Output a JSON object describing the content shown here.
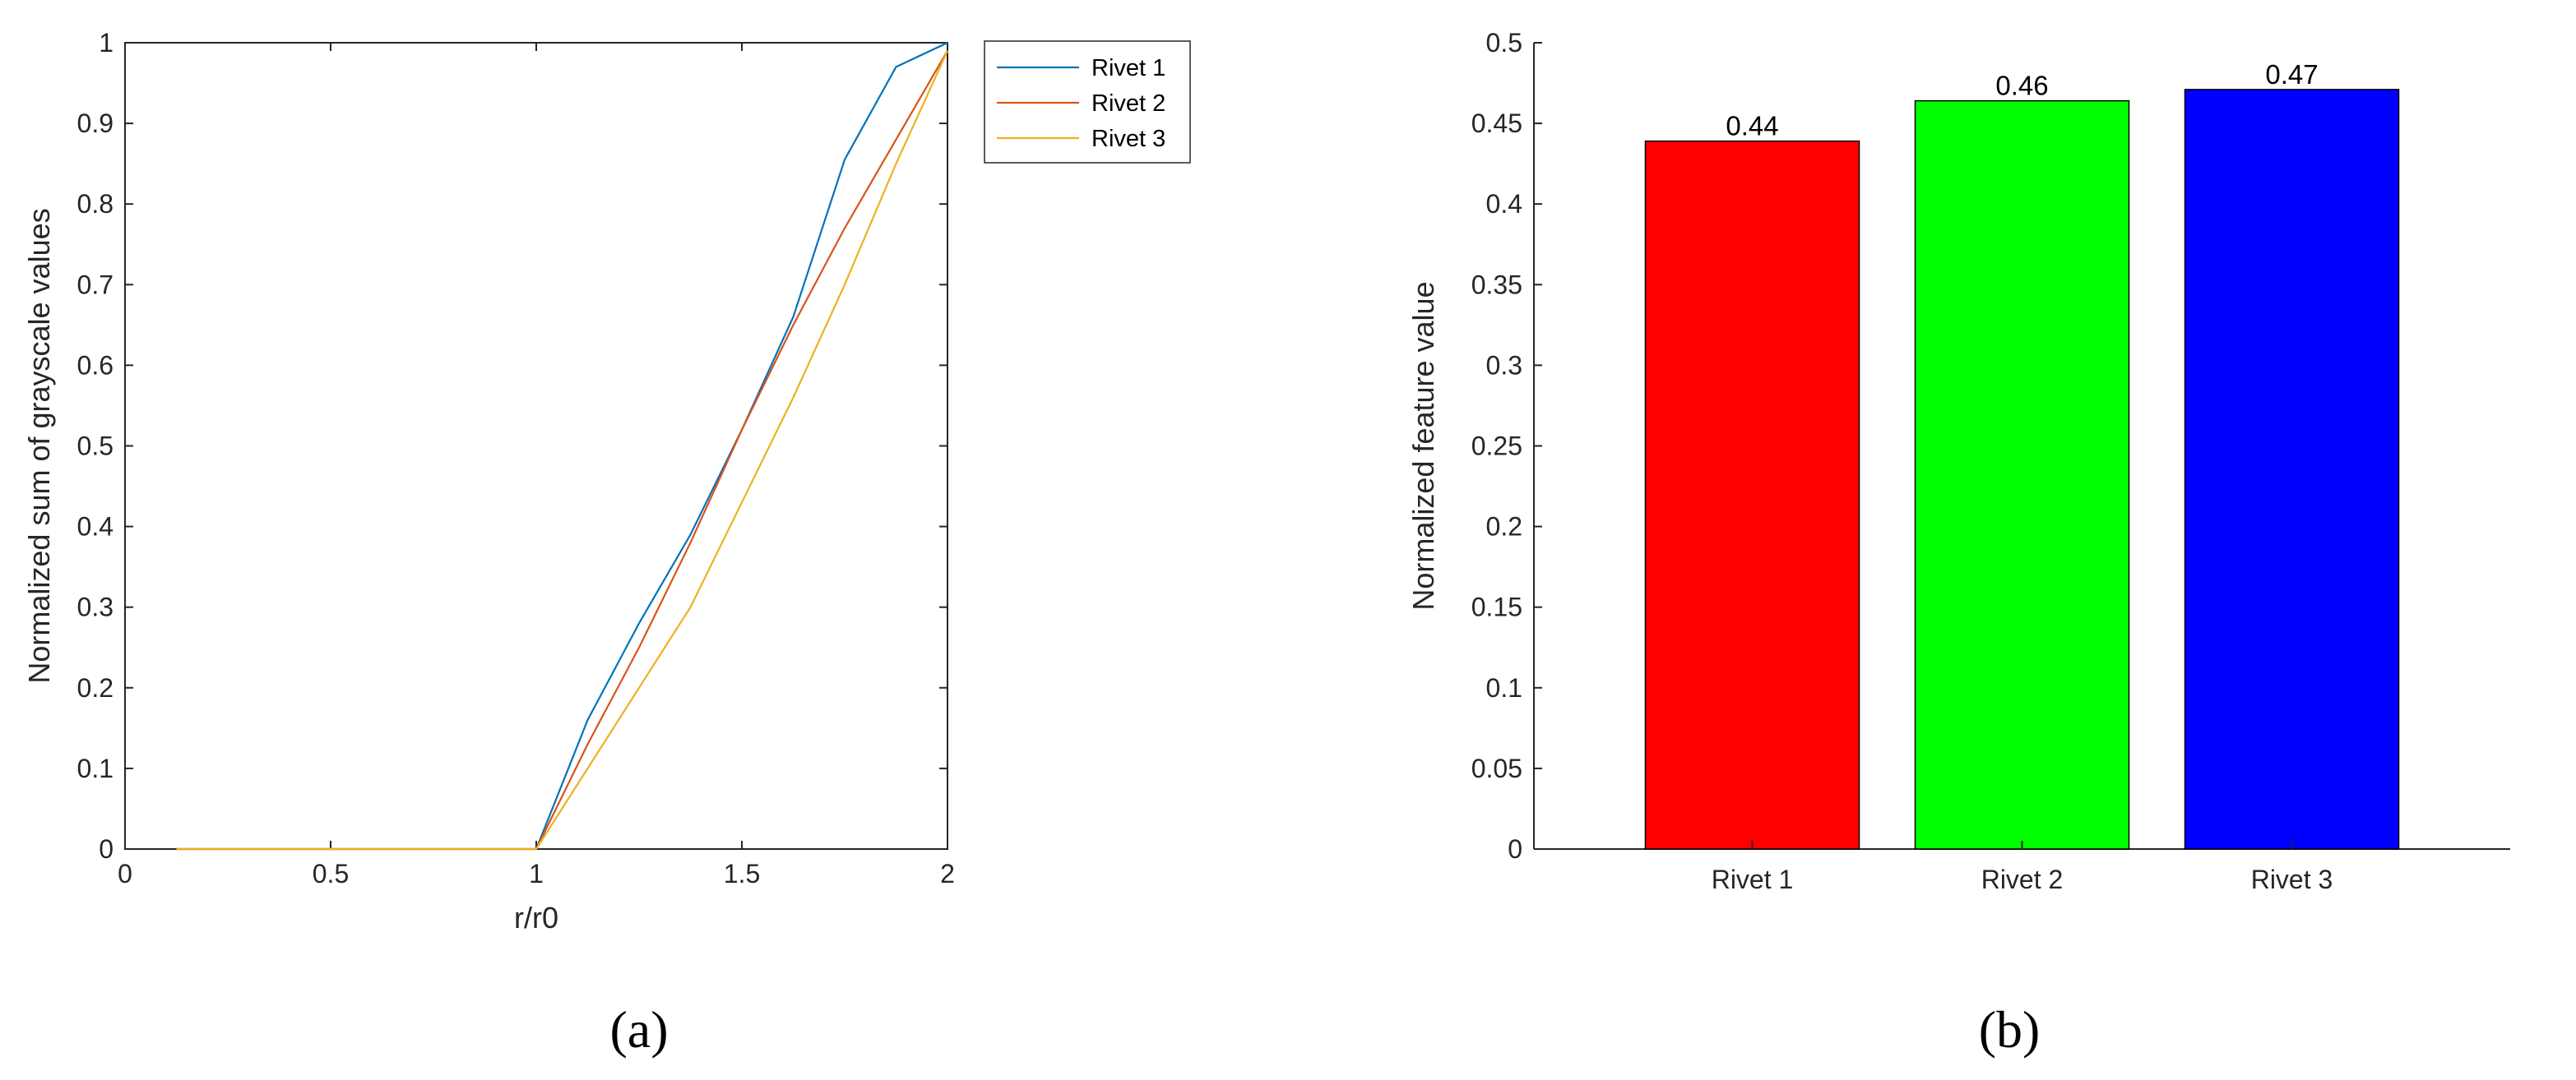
{
  "panels": {
    "a": {
      "label": "(a)"
    },
    "b": {
      "label": "(b)"
    }
  },
  "chart_data": [
    {
      "type": "line",
      "xlabel": "r/r0",
      "ylabel": "Normalized sum of grayscale values",
      "xlim": [
        0,
        2
      ],
      "ylim": [
        0,
        1
      ],
      "xticks": [
        0,
        0.5,
        1,
        1.5,
        2
      ],
      "xtick_labels": [
        "0",
        "0.5",
        "1",
        "1.5",
        "2"
      ],
      "yticks": [
        0,
        0.1,
        0.2,
        0.3,
        0.4,
        0.5,
        0.6,
        0.7,
        0.8,
        0.9,
        1
      ],
      "ytick_labels": [
        "0",
        "0.1",
        "0.2",
        "0.3",
        "0.4",
        "0.5",
        "0.6",
        "0.7",
        "0.8",
        "0.9",
        "1"
      ],
      "legend_position": "outside-top-right",
      "grid": false,
      "series": [
        {
          "name": "Rivet 1",
          "color": "#0072BD",
          "x": [
            0.125,
            0.25,
            0.375,
            0.5,
            0.625,
            0.75,
            0.875,
            1.0,
            1.125,
            1.25,
            1.375,
            1.5,
            1.625,
            1.75,
            1.875,
            2.0
          ],
          "y": [
            0,
            0,
            0,
            0,
            0,
            0,
            0,
            0,
            0.16,
            0.28,
            0.39,
            0.52,
            0.66,
            0.855,
            0.97,
            1.0
          ]
        },
        {
          "name": "Rivet 2",
          "color": "#D95319",
          "x": [
            0.125,
            0.25,
            0.375,
            0.5,
            0.625,
            0.75,
            0.875,
            1.0,
            1.125,
            1.25,
            1.375,
            1.5,
            1.625,
            1.75,
            1.875,
            2.0
          ],
          "y": [
            0,
            0,
            0,
            0,
            0,
            0,
            0,
            0,
            0.13,
            0.25,
            0.38,
            0.52,
            0.65,
            0.77,
            0.88,
            0.99
          ]
        },
        {
          "name": "Rivet 3",
          "color": "#EDB120",
          "x": [
            0.125,
            0.25,
            0.375,
            0.5,
            0.625,
            0.75,
            0.875,
            1.0,
            1.125,
            1.25,
            1.375,
            1.5,
            1.625,
            1.75,
            1.875,
            2.0
          ],
          "y": [
            0,
            0,
            0,
            0,
            0,
            0,
            0,
            0,
            0.1,
            0.2,
            0.3,
            0.43,
            0.56,
            0.7,
            0.85,
            0.99
          ]
        }
      ]
    },
    {
      "type": "bar",
      "xlabel": "",
      "ylabel": "Normalized feature value",
      "ylim": [
        0,
        0.5
      ],
      "yticks": [
        0,
        0.05,
        0.1,
        0.15,
        0.2,
        0.25,
        0.3,
        0.35,
        0.4,
        0.45,
        0.5
      ],
      "ytick_labels": [
        "0",
        "0.05",
        "0.1",
        "0.15",
        "0.2",
        "0.25",
        "0.3",
        "0.35",
        "0.4",
        "0.45",
        "0.5"
      ],
      "categories": [
        "Rivet 1",
        "Rivet 2",
        "Rivet 3"
      ],
      "values": [
        0.439,
        0.464,
        0.471
      ],
      "data_labels": [
        "0.44",
        "0.46",
        "0.47"
      ],
      "colors": [
        "#FF0000",
        "#00FF00",
        "#0000FF"
      ],
      "grid": false
    }
  ]
}
